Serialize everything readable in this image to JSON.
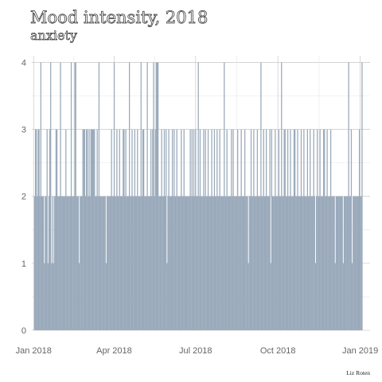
{
  "chart_data": {
    "type": "bar",
    "title": "Mood intensity, 2018",
    "subtitle": "anxiety",
    "caption": "Liz Roten",
    "xlabel": "",
    "ylabel": "",
    "x_start": "2018-01-01",
    "x_end": "2018-12-31",
    "xlim": [
      "2017-12-30",
      "2019-01-12"
    ],
    "ylim": [
      0,
      4.1
    ],
    "y_ticks": [
      "0",
      "1",
      "2",
      "3",
      "4"
    ],
    "x_ticks": [
      {
        "date": "2018-01-01",
        "label": "Jan 2018"
      },
      {
        "date": "2018-04-01",
        "label": "Apr 2018"
      },
      {
        "date": "2018-07-01",
        "label": "Jul 2018"
      },
      {
        "date": "2018-10-01",
        "label": "Oct 2018"
      },
      {
        "date": "2019-01-01",
        "label": "Jan 2019"
      }
    ],
    "grid": true,
    "legend": "none",
    "bar_color": "#9aaabb",
    "values": [
      0,
      2,
      3,
      3,
      2,
      3,
      3,
      2,
      4,
      2,
      2,
      2,
      1,
      2,
      2,
      3,
      1,
      2,
      3,
      4,
      1,
      2,
      1,
      2,
      2,
      3,
      3,
      2,
      2,
      2,
      4,
      2,
      2,
      2,
      2,
      2,
      3,
      2,
      2,
      2,
      2,
      2,
      4,
      2,
      2,
      2,
      4,
      4,
      2,
      2,
      2,
      1,
      2,
      2,
      2,
      3,
      3,
      3,
      2,
      3,
      3,
      2,
      3,
      2,
      3,
      3,
      3,
      3,
      3,
      2,
      2,
      3,
      2,
      4,
      2,
      2,
      2,
      2,
      2,
      2,
      2,
      1,
      2,
      2,
      2,
      2,
      2,
      3,
      2,
      2,
      4,
      2,
      2,
      3,
      2,
      2,
      3,
      2,
      2,
      2,
      3,
      3,
      2,
      3,
      2,
      2,
      2,
      4,
      2,
      2,
      3,
      2,
      2,
      3,
      2,
      2,
      3,
      2,
      2,
      2,
      4,
      2,
      3,
      3,
      2,
      2,
      2,
      4,
      2,
      2,
      2,
      3,
      2,
      3,
      4,
      2,
      3,
      4,
      4,
      4,
      2,
      2,
      2,
      3,
      2,
      2,
      3,
      2,
      3,
      1,
      2,
      3,
      2,
      2,
      2,
      3,
      2,
      3,
      2,
      2,
      3,
      2,
      2,
      2,
      2,
      3,
      2,
      2,
      3,
      2,
      2,
      2,
      2,
      2,
      2,
      3,
      2,
      3,
      2,
      3,
      2,
      3,
      2,
      2,
      4,
      2,
      3,
      2,
      2,
      2,
      3,
      2,
      3,
      2,
      2,
      3,
      2,
      2,
      2,
      3,
      2,
      2,
      3,
      2,
      2,
      3,
      2,
      2,
      3,
      2,
      2,
      2,
      2,
      4,
      2,
      2,
      3,
      2,
      2,
      2,
      2,
      3,
      2,
      3,
      2,
      2,
      2,
      2,
      3,
      2,
      2,
      2,
      3,
      2,
      2,
      2,
      3,
      2,
      2,
      2,
      1,
      2,
      2,
      3,
      2,
      2,
      3,
      2,
      2,
      2,
      3,
      2,
      2,
      2,
      4,
      2,
      2,
      3,
      2,
      2,
      3,
      2,
      2,
      2,
      3,
      1,
      3,
      2,
      2,
      2,
      3,
      2,
      2,
      2,
      3,
      2,
      2,
      4,
      2,
      2,
      3,
      3,
      2,
      2,
      3,
      2,
      2,
      3,
      2,
      2,
      2,
      3,
      3,
      2,
      2,
      3,
      2,
      2,
      2,
      3,
      2,
      2,
      3,
      2,
      2,
      2,
      3,
      2,
      2,
      3,
      2,
      2,
      2,
      3,
      2,
      1,
      2,
      3,
      2,
      2,
      3,
      2,
      2,
      2,
      3,
      3,
      2,
      2,
      3,
      2,
      2,
      2,
      3,
      2,
      2,
      2,
      2,
      1,
      2,
      2,
      2,
      2,
      2,
      2,
      2,
      2,
      1,
      2,
      2,
      2,
      2,
      2,
      4,
      2,
      2,
      3,
      1,
      2,
      2,
      2,
      2,
      2,
      2,
      2,
      3,
      2,
      2,
      4,
      0
    ]
  }
}
